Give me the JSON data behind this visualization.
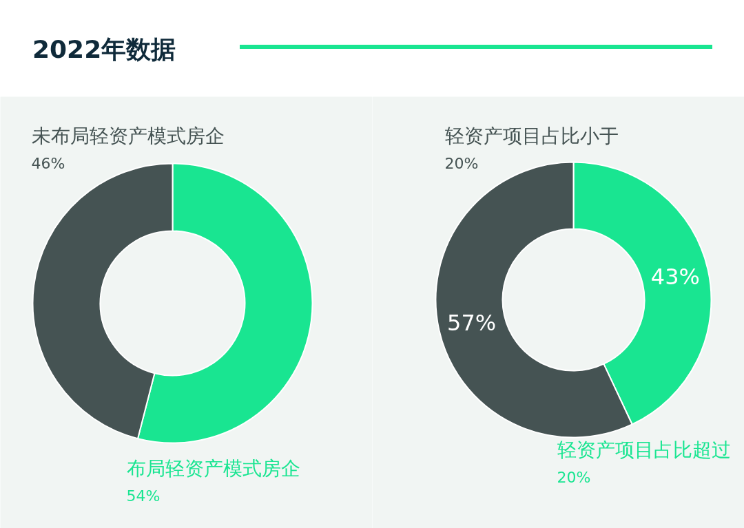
{
  "chart_data": [
    {
      "type": "donut",
      "title": "2022年数据",
      "categories": [
        "布局轻资产模式房企",
        "未布局轻资产模式房企"
      ],
      "values": [
        54,
        46
      ],
      "colors": [
        "#19e591",
        "#455353"
      ],
      "value_labels": [
        "54%",
        "46%"
      ]
    },
    {
      "type": "donut",
      "categories": [
        "轻资产项目占比超过\n20%",
        "轻资产项目占比小于\n20%"
      ],
      "values": [
        43,
        57
      ],
      "colors": [
        "#19e591",
        "#455353"
      ],
      "value_labels": [
        "43%",
        "57%"
      ]
    }
  ]
}
